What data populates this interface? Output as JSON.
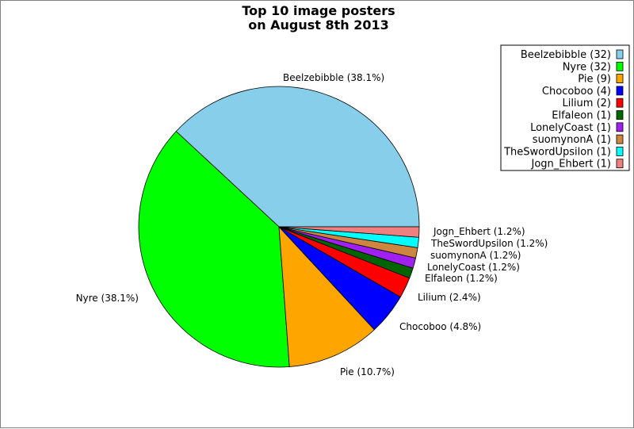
{
  "chart_data": {
    "type": "pie",
    "title": "Top 10 image posters",
    "subtitle": "on August 8th 2013",
    "start_angle_deg": 0,
    "direction": "counterclockwise",
    "legend_position": "top-right",
    "slices": [
      {
        "name": "Beelzebibble",
        "count": 32,
        "percent": 38.1,
        "color": "#87ceeb",
        "label": "Beelzebibble (38.1%)",
        "legend": "Beelzebibble (32)"
      },
      {
        "name": "Nyre",
        "count": 32,
        "percent": 38.1,
        "color": "#00ff00",
        "label": "Nyre (38.1%)",
        "legend": "Nyre (32)"
      },
      {
        "name": "Pie",
        "count": 9,
        "percent": 10.7,
        "color": "#ffa500",
        "label": "Pie (10.7%)",
        "legend": "Pie (9)"
      },
      {
        "name": "Chocoboo",
        "count": 4,
        "percent": 4.8,
        "color": "#0000ff",
        "label": "Chocoboo (4.8%)",
        "legend": "Chocoboo (4)"
      },
      {
        "name": "Lilium",
        "count": 2,
        "percent": 2.4,
        "color": "#ff0000",
        "label": "Lilium (2.4%)",
        "legend": "Lilium (2)"
      },
      {
        "name": "Elfaleon",
        "count": 1,
        "percent": 1.2,
        "color": "#006400",
        "label": "Elfaleon (1.2%)",
        "legend": "Elfaleon (1)"
      },
      {
        "name": "LonelyCoast",
        "count": 1,
        "percent": 1.2,
        "color": "#a020f0",
        "label": "LonelyCoast (1.2%)",
        "legend": "LonelyCoast (1)"
      },
      {
        "name": "suomynonA",
        "count": 1,
        "percent": 1.2,
        "color": "#cd853f",
        "label": "suomynonA (1.2%)",
        "legend": "suomynonA (1)"
      },
      {
        "name": "TheSwordUpsilon",
        "count": 1,
        "percent": 1.2,
        "color": "#00ffff",
        "label": "TheSwordUpsilon (1.2%)",
        "legend": "TheSwordUpsilon (1)"
      },
      {
        "name": "Jogn_Ehbert",
        "count": 1,
        "percent": 1.2,
        "color": "#f08080",
        "label": "Jogn_Ehbert (1.2%)",
        "legend": "Jogn_Ehbert (1)"
      }
    ]
  }
}
